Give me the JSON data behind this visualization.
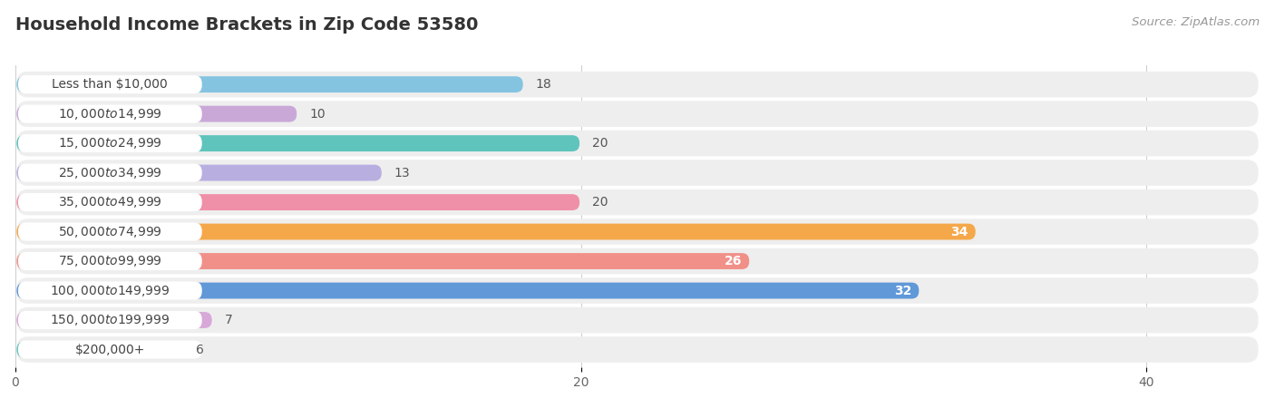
{
  "title": "Household Income Brackets in Zip Code 53580",
  "source": "Source: ZipAtlas.com",
  "categories": [
    "Less than $10,000",
    "$10,000 to $14,999",
    "$15,000 to $24,999",
    "$25,000 to $34,999",
    "$35,000 to $49,999",
    "$50,000 to $74,999",
    "$75,000 to $99,999",
    "$100,000 to $149,999",
    "$150,000 to $199,999",
    "$200,000+"
  ],
  "values": [
    18,
    10,
    20,
    13,
    20,
    34,
    26,
    32,
    7,
    6
  ],
  "colors": [
    "#85c4e0",
    "#c9a8d8",
    "#5ec4bc",
    "#b8aee0",
    "#f090a8",
    "#f5a84a",
    "#f09088",
    "#6098d8",
    "#d8a8d8",
    "#68c8c0"
  ],
  "xlim": [
    0,
    44
  ],
  "xticks": [
    0,
    20,
    40
  ],
  "background_color": "#ffffff",
  "row_bg_color": "#f0f0f0",
  "row_sep_color": "#e0e0e0",
  "title_fontsize": 14,
  "label_fontsize": 10,
  "value_fontsize": 10,
  "source_fontsize": 9.5
}
